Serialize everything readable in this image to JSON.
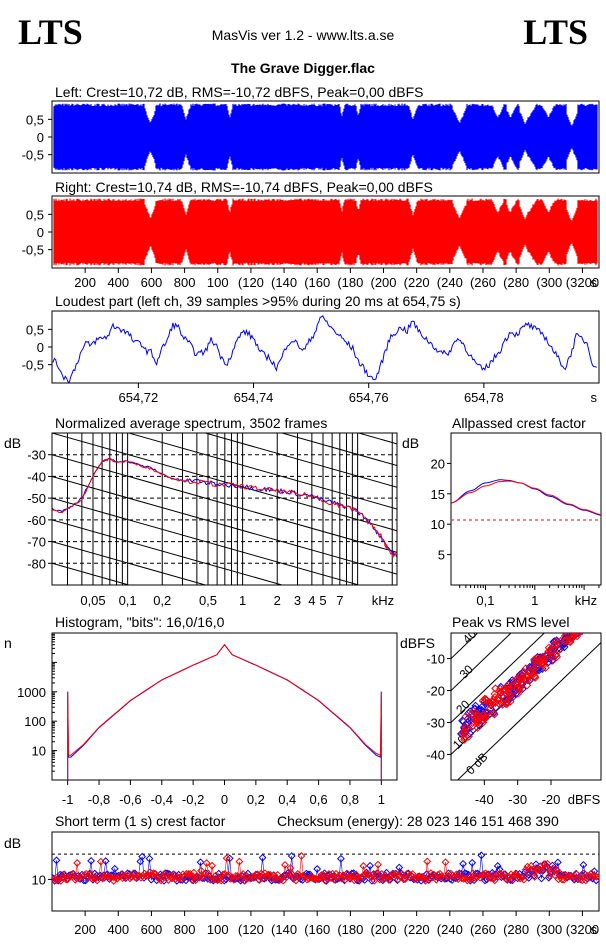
{
  "header": {
    "logo_left": "LTS",
    "logo_right": "LTS",
    "app_title": "MasVis ver 1.2 - www.lts.a.se",
    "file_title": "The Grave Digger.flac"
  },
  "colors": {
    "left": "#0000ff",
    "right": "#ff0000",
    "grid": "#000000",
    "reference": "#ff0000"
  },
  "chart_data": [
    {
      "id": "left-waveform",
      "type": "area",
      "title": "Left: Crest=10,72 dB, RMS=-10,72 dBFS, Peak=0,00 dBFS",
      "series": [
        {
          "name": "Left",
          "color": "#0000ff"
        }
      ],
      "xlim": [
        0,
        3300
      ],
      "ylim": [
        -1,
        1
      ],
      "yticks": [
        "0.5",
        "0",
        "-0.5"
      ],
      "crest_db": 10.72,
      "rms_dbfs": -10.72,
      "peak_dbfs": 0.0
    },
    {
      "id": "right-waveform",
      "type": "area",
      "title": "Right: Crest=10,74 dB, RMS=-10,74 dBFS, Peak=0,00 dBFS",
      "series": [
        {
          "name": "Right",
          "color": "#ff0000"
        }
      ],
      "xlim": [
        0,
        3300
      ],
      "ylim": [
        -1,
        1
      ],
      "yticks": [
        "0.5",
        "0",
        "-0.5"
      ],
      "xticks": [
        "200",
        "400",
        "600",
        "800",
        "1000",
        "1200",
        "1400",
        "1600",
        "1800",
        "2000",
        "2200",
        "2400",
        "2600",
        "2800",
        "3000",
        "3200"
      ],
      "xtick_labels": [
        "200",
        "400",
        "600",
        "800",
        "100",
        "(120",
        "(140",
        "(160",
        "(180",
        "(200",
        "(220",
        "(240",
        "(260",
        "(280",
        "(300",
        "(3200"
      ],
      "xunit": "s",
      "crest_db": 10.74,
      "rms_dbfs": -10.74,
      "peak_dbfs": 0.0
    },
    {
      "id": "loudest-part",
      "type": "line",
      "title": "Loudest part (left  ch, 39 samples >95% during 20 ms at 654,75 s)",
      "xlim": [
        654.705,
        654.8
      ],
      "ylim": [
        -1,
        1
      ],
      "yticks": [
        "0.5",
        "0",
        "-0.5"
      ],
      "xticks": [
        654.72,
        654.74,
        654.76,
        654.78
      ],
      "xtick_labels": [
        "654,72",
        "654,74",
        "654,76",
        "654,78"
      ],
      "xunit": "s",
      "series": [
        {
          "name": "Left",
          "color": "#0000ff",
          "values": [
            -0.35,
            -0.55,
            -0.85,
            -0.95,
            -0.6,
            -0.2,
            0.1,
            0.05,
            0.2,
            0.25,
            0.3,
            0.6,
            0.55,
            0.45,
            0.35,
            0.1,
            0.15,
            -0.1,
            -0.15,
            -0.45,
            -0.05,
            0.2,
            0.65,
            0.55,
            0.25,
            0.1,
            -0.15,
            -0.2,
            -0.1,
            0.2,
            0.05,
            -0.35,
            -0.45,
            -0.1,
            0.25,
            0.45,
            0.35,
            0.2,
            -0.15,
            -0.25,
            -0.35,
            -0.6,
            -0.3,
            0.1,
            0.2,
            0.05,
            -0.1,
            0.15,
            0.4,
            0.85,
            0.75,
            0.55,
            0.4,
            0.25,
            0.1,
            -0.05,
            -0.4,
            -0.6,
            -0.8,
            -0.95,
            -0.6,
            -0.1,
            0.3,
            0.45,
            0.55,
            0.45,
            0.75,
            0.45,
            0.3,
            0.15,
            0.0,
            -0.15,
            -0.2,
            -0.1,
            0.25,
            0.15,
            -0.1,
            -0.35,
            -0.55,
            -0.65,
            -0.5,
            -0.3,
            -0.1,
            0.2,
            0.45,
            0.35,
            0.5,
            0.65,
            0.55,
            0.45,
            0.35,
            0.1,
            -0.15,
            -0.4,
            -0.6,
            -0.2,
            0.3,
            0.25,
            0.1,
            -0.45,
            -0.6
          ]
        }
      ]
    },
    {
      "id": "spectrum",
      "type": "line",
      "title": "Normalized average spectrum, 3502 frames",
      "ylabel": "dB",
      "xunit": "kHz",
      "xscale": "log",
      "xlim": [
        0.022,
        22
      ],
      "ylim": [
        -90,
        -20
      ],
      "yticks": [
        -30,
        -40,
        -50,
        -60,
        -70,
        -80
      ],
      "xticks": [
        0.05,
        0.1,
        0.2,
        0.5,
        1,
        2,
        3,
        4,
        5,
        7
      ],
      "xtick_labels": [
        "0,05",
        "0,1",
        "0,2",
        "0,5",
        "1",
        "2",
        "3",
        "4",
        "5",
        "7"
      ],
      "series": [
        {
          "name": "Left",
          "color": "#0000ff",
          "x": [
            0.022,
            0.027,
            0.032,
            0.04,
            0.05,
            0.06,
            0.07,
            0.08,
            0.1,
            0.13,
            0.16,
            0.2,
            0.25,
            0.3,
            0.4,
            0.5,
            0.6,
            0.8,
            1,
            1.3,
            1.6,
            2,
            2.5,
            3,
            4,
            5,
            6,
            7,
            8,
            10,
            12,
            14,
            16,
            18,
            20,
            22
          ],
          "y": [
            -55,
            -56,
            -54,
            -50,
            -40,
            -33,
            -32,
            -33,
            -33,
            -35,
            -36,
            -39,
            -41,
            -42,
            -42,
            -43,
            -43.5,
            -44,
            -44.5,
            -45.5,
            -46,
            -46.5,
            -47,
            -48,
            -49,
            -51,
            -52,
            -53,
            -54,
            -56,
            -60,
            -64,
            -68,
            -72,
            -75,
            -77
          ]
        },
        {
          "name": "Right",
          "color": "#ff0000",
          "x": [
            0.022,
            0.027,
            0.032,
            0.04,
            0.05,
            0.06,
            0.07,
            0.08,
            0.1,
            0.13,
            0.16,
            0.2,
            0.25,
            0.3,
            0.4,
            0.5,
            0.6,
            0.8,
            1,
            1.3,
            1.6,
            2,
            2.5,
            3,
            4,
            5,
            6,
            7,
            8,
            10,
            12,
            14,
            16,
            18,
            20,
            22
          ],
          "y": [
            -55.5,
            -56.5,
            -54,
            -50.5,
            -40,
            -33,
            -32,
            -33.5,
            -33,
            -35,
            -36.5,
            -39,
            -41,
            -42,
            -42.5,
            -43,
            -44,
            -44,
            -44.5,
            -45.5,
            -46,
            -46.5,
            -47.5,
            -48,
            -49,
            -51,
            -52.5,
            -53,
            -54,
            -56,
            -60,
            -64,
            -68,
            -72.5,
            -75.5,
            -77
          ]
        }
      ]
    },
    {
      "id": "allpass-crest",
      "type": "line",
      "title": "Allpassed crest factor",
      "ylabel": "dB",
      "xunit": "kHz",
      "xscale": "log",
      "xlim": [
        0.02,
        22
      ],
      "ylim": [
        0,
        25
      ],
      "yticks": [
        20,
        15,
        10,
        5
      ],
      "xticks": [
        0.1,
        1
      ],
      "xtick_labels": [
        "0,1",
        "1"
      ],
      "reference_line": 10.7,
      "series": [
        {
          "name": "Left",
          "color": "#0000ff",
          "x": [
            0.02,
            0.05,
            0.1,
            0.2,
            0.3,
            0.5,
            1,
            2,
            5,
            10,
            22
          ],
          "y": [
            13.5,
            15.5,
            16.8,
            17.3,
            17.2,
            16.8,
            15.8,
            14.6,
            13.2,
            12.3,
            11.5
          ]
        },
        {
          "name": "Right",
          "color": "#ff0000",
          "x": [
            0.02,
            0.05,
            0.1,
            0.2,
            0.3,
            0.5,
            1,
            2,
            5,
            10,
            22
          ],
          "y": [
            13.5,
            15.2,
            16.3,
            17.0,
            17.1,
            16.8,
            15.9,
            14.8,
            13.3,
            12.4,
            11.6
          ]
        }
      ]
    },
    {
      "id": "histogram",
      "type": "line",
      "title": "Histogram, \"bits\": 16,0/16,0",
      "ylabel": "n",
      "yscale": "log",
      "xlim": [
        -1.1,
        1.1
      ],
      "ylim": [
        1,
        100000
      ],
      "yticks": [
        1000,
        100,
        10
      ],
      "xticks": [
        -1,
        -0.8,
        -0.6,
        -0.4,
        -0.2,
        0,
        0.2,
        0.4,
        0.6,
        0.8,
        1
      ],
      "xtick_labels": [
        "-1",
        "-0,8",
        "-0,6",
        "-0,4",
        "-0,2",
        "0",
        "0,2",
        "0,4",
        "0,6",
        "0,8",
        "1"
      ],
      "series": [
        {
          "name": "Left",
          "color": "#0000ff",
          "x": [
            -1,
            -0.98,
            -0.9,
            -0.8,
            -0.6,
            -0.4,
            -0.2,
            -0.05,
            0,
            0.05,
            0.2,
            0.4,
            0.6,
            0.8,
            0.9,
            0.98,
            1
          ],
          "y": [
            1000,
            6,
            15,
            60,
            500,
            2500,
            8000,
            18000,
            40000,
            18000,
            8000,
            2500,
            500,
            60,
            15,
            6,
            1000
          ]
        },
        {
          "name": "Right",
          "color": "#ff0000",
          "x": [
            -1,
            -0.98,
            -0.9,
            -0.8,
            -0.6,
            -0.4,
            -0.2,
            -0.05,
            0,
            0.05,
            0.2,
            0.4,
            0.6,
            0.8,
            0.9,
            0.98,
            1
          ],
          "y": [
            1000,
            7,
            16,
            62,
            510,
            2550,
            8100,
            18200,
            40000,
            18200,
            8100,
            2550,
            510,
            62,
            16,
            7,
            1000
          ]
        }
      ]
    },
    {
      "id": "peak-vs-rms",
      "type": "scatter",
      "title": "Peak vs RMS level",
      "ylabel": "dBFS",
      "xunit": "dBFS",
      "xlim": [
        -50,
        -5
      ],
      "ylim": [
        -48,
        -2
      ],
      "yticks": [
        -10,
        -20,
        -30,
        -40
      ],
      "xticks": [
        -40,
        -30,
        -20
      ],
      "crest_lines": [
        "0 dB",
        "10",
        "20",
        "30",
        "40"
      ],
      "series": [
        {
          "name": "Left",
          "color": "#0000ff"
        },
        {
          "name": "Right",
          "color": "#ff0000"
        }
      ]
    },
    {
      "id": "short-term-crest",
      "type": "scatter",
      "title": "Short term (1 s) crest factor",
      "ylabel": "dB",
      "annotation": "Checksum (energy):  28 023 146 151 468 390",
      "xlim": [
        0,
        3300
      ],
      "ylim": [
        0,
        25
      ],
      "yticks": [
        10
      ],
      "reference_line": 18,
      "xticks": [
        "200",
        "400",
        "600",
        "800",
        "1000",
        "1200",
        "1400",
        "1600",
        "1800",
        "2000",
        "2200",
        "2400",
        "2600",
        "2800",
        "3000",
        "3200"
      ],
      "xtick_labels": [
        "200",
        "400",
        "600",
        "800",
        "100",
        "(120",
        "(140",
        "(160",
        "(180",
        "(200",
        "(220",
        "(240",
        "(260",
        "(280",
        "(300",
        "(3200"
      ],
      "xunit": "s",
      "series": [
        {
          "name": "Left",
          "color": "#0000ff"
        },
        {
          "name": "Right",
          "color": "#ff0000"
        }
      ]
    }
  ]
}
